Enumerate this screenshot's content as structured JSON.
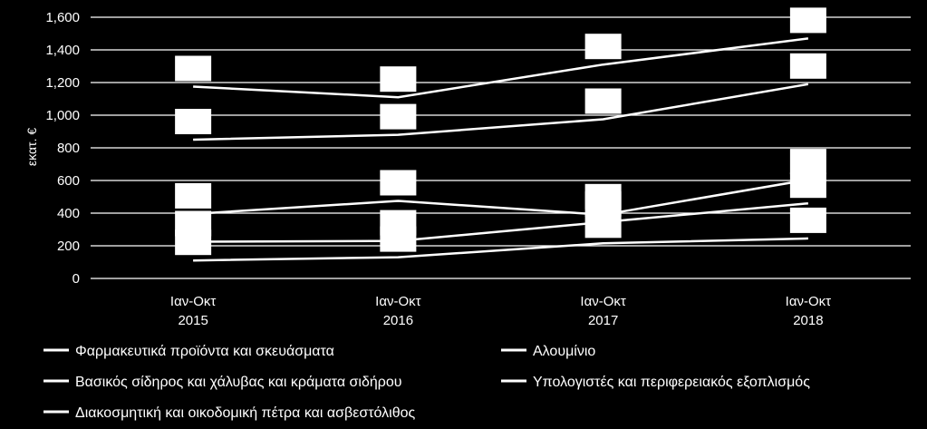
{
  "chart_data": {
    "type": "line",
    "ylabel": "εκατ. €",
    "ylim": [
      0,
      1600
    ],
    "yticks": [
      "0",
      "200",
      "400",
      "600",
      "800",
      "1,000",
      "1,200",
      "1,400",
      "1,600"
    ],
    "ytick_values": [
      0,
      200,
      400,
      600,
      800,
      1000,
      1200,
      1400,
      1600
    ],
    "categories": [
      [
        "Ιαν-Οκτ",
        "2015"
      ],
      [
        "Ιαν-Οκτ",
        "2016"
      ],
      [
        "Ιαν-Οκτ",
        "2017"
      ],
      [
        "Ιαν-Οκτ",
        "2018"
      ]
    ],
    "grid": true,
    "legend_position": "bottom",
    "line_color": "#ffffff",
    "series": [
      {
        "name": "Φαρμακευτικά προϊόντα και σκευάσματα",
        "values": [
          1175,
          1110,
          1310,
          1470
        ]
      },
      {
        "name": "Αλουμίνιο",
        "values": [
          850,
          880,
          975,
          1190
        ]
      },
      {
        "name": "Βασικός σίδηρος και χάλυβας και κράματα σιδήρου",
        "values": [
          395,
          475,
          390,
          605
        ]
      },
      {
        "name": "Υπολογιστές και περιφερειακός εξοπλισμός",
        "values": [
          225,
          230,
          345,
          460
        ]
      },
      {
        "name": "Διακοσμητική και οικοδομική πέτρα και ασβεστόλιθος",
        "values": [
          110,
          130,
          215,
          245
        ]
      }
    ]
  }
}
